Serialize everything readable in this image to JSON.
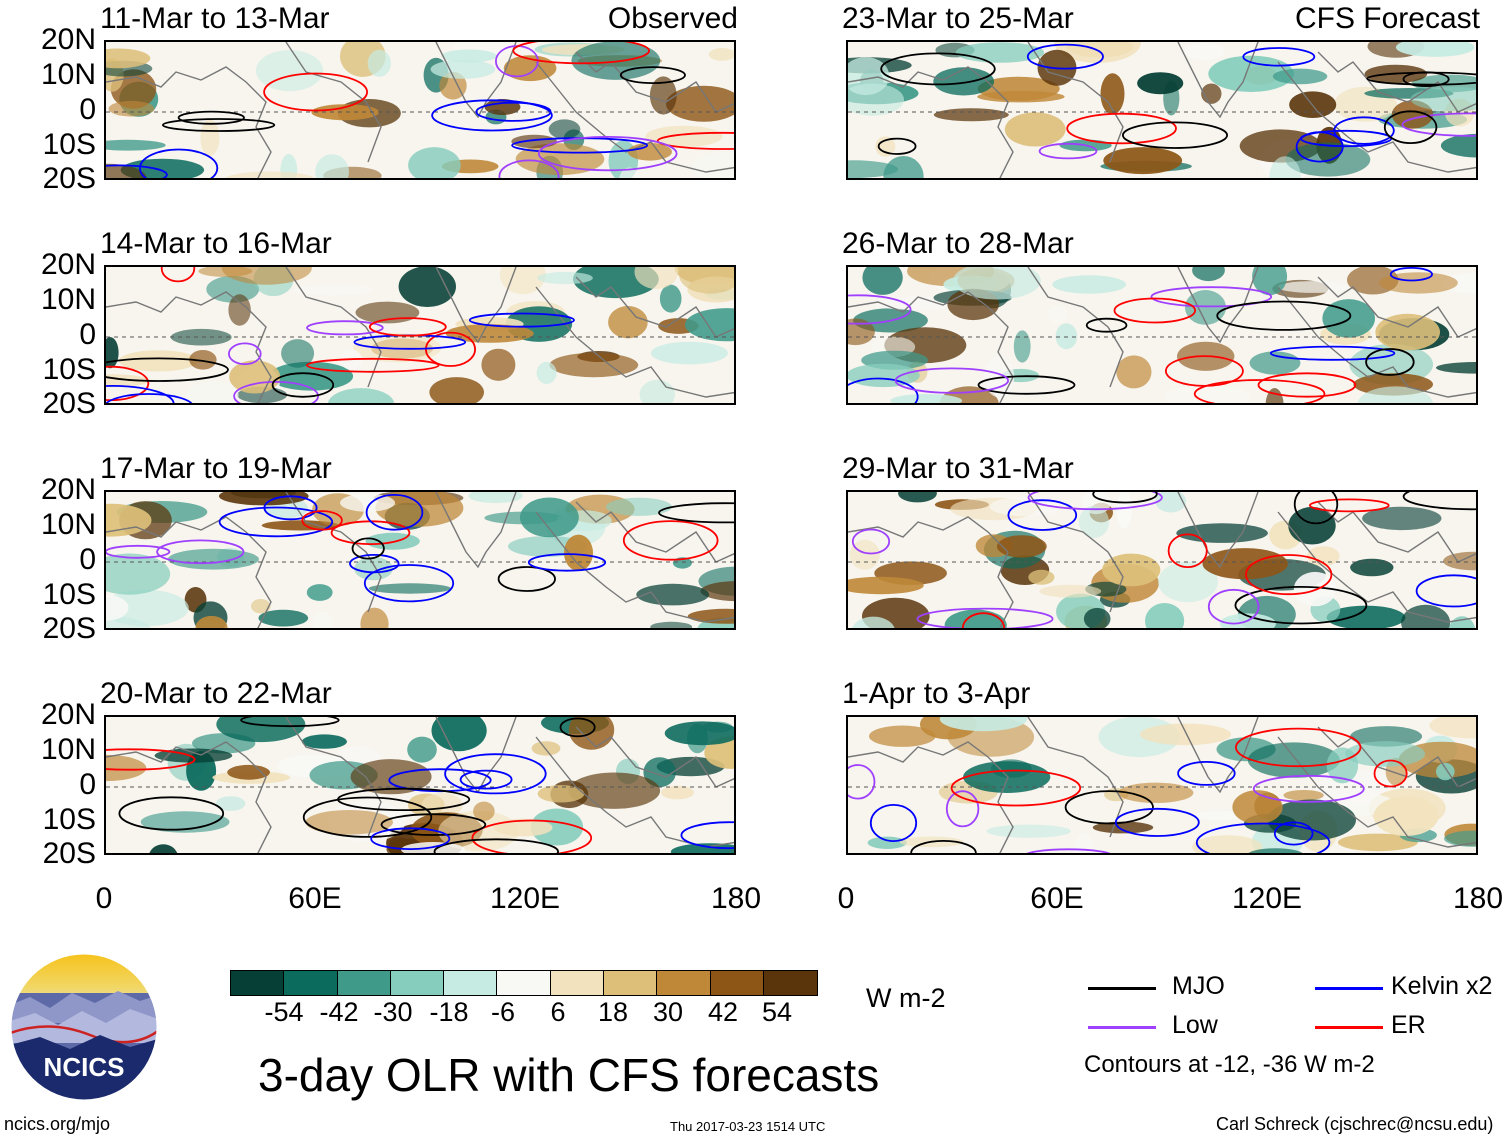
{
  "observed_label": "Observed",
  "forecast_label": "CFS Forecast",
  "panels_left": [
    {
      "title": "11-Mar to 13-Mar"
    },
    {
      "title": "14-Mar to 16-Mar"
    },
    {
      "title": "17-Mar to 19-Mar"
    },
    {
      "title": "20-Mar to 22-Mar"
    }
  ],
  "panels_right": [
    {
      "title": "23-Mar to 25-Mar"
    },
    {
      "title": "26-Mar to 28-Mar"
    },
    {
      "title": "29-Mar to 31-Mar"
    },
    {
      "title": "1-Apr to 3-Apr"
    }
  ],
  "lat_labels": [
    "20N",
    "10N",
    "0",
    "10S",
    "20S"
  ],
  "lon_labels": [
    "0",
    "60E",
    "120E",
    "180"
  ],
  "colorbar": {
    "colors": [
      "#063f35",
      "#0b6b5d",
      "#3f9a8a",
      "#86cdbd",
      "#c6ebe2",
      "#f8f8f5",
      "#f2e2bd",
      "#ddbf7a",
      "#bf8838",
      "#8d5617",
      "#5a350b"
    ],
    "tick_labels": [
      "-54",
      "-42",
      "-30",
      "-18",
      "-6",
      "6",
      "18",
      "30",
      "42",
      "54"
    ],
    "units": "W m-2"
  },
  "legend": {
    "items": [
      {
        "name": "MJO",
        "color": "#000000"
      },
      {
        "name": "Kelvin x2",
        "color": "#0000ff"
      },
      {
        "name": "Low",
        "color": "#a040ff"
      },
      {
        "name": "ER",
        "color": "#ff0000"
      }
    ],
    "note": "Contours at -12, -36 W m-2"
  },
  "main_title": "3-day OLR with CFS forecasts",
  "logo_text": "NCICS",
  "footer": {
    "url": "ncics.org/mjo",
    "timestamp": "Thu 2017-03-23 1514 UTC",
    "author": "Carl Schreck (cjschrec@ncsu.edu)"
  }
}
